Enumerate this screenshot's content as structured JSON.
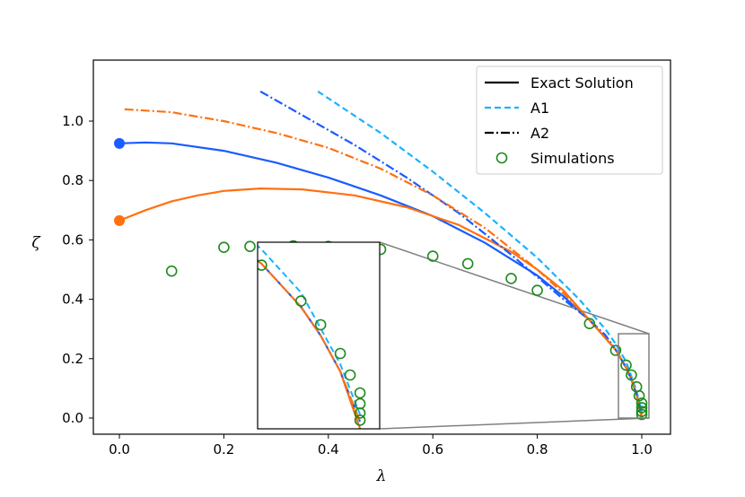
{
  "chart_data": {
    "type": "line",
    "xlabel": "λ",
    "ylabel": "ζ",
    "xlim": [
      -0.05,
      1.05
    ],
    "ylim": [
      -0.05,
      1.1
    ],
    "xticks": [
      "0.0",
      "0.2",
      "0.4",
      "0.6",
      "0.8",
      "1.0"
    ],
    "yticks": [
      "0.0",
      "0.2",
      "0.4",
      "0.6",
      "0.8",
      "1.0"
    ],
    "grid": false,
    "legend": {
      "placement": "top-right",
      "entries": [
        {
          "label": "Exact Solution",
          "style": "solid",
          "color": "#000000"
        },
        {
          "label": "A1",
          "style": "dashed",
          "color": "#1ab2ff"
        },
        {
          "label": "A2",
          "style": "dashdot",
          "color": "#000000"
        },
        {
          "label": "Simulations",
          "style": "marker-circle",
          "color": "#1e8a1e"
        }
      ]
    },
    "series": [
      {
        "style": "solid",
        "color": "#1a5cff",
        "start_marker": true,
        "x": [
          0,
          0.05,
          0.1,
          0.2,
          0.3,
          0.4,
          0.5,
          0.6,
          0.7,
          0.8,
          0.85,
          0.9,
          0.93,
          0.95,
          0.97,
          0.98,
          0.99,
          1.0
        ],
        "y": [
          0.925,
          0.928,
          0.925,
          0.9,
          0.86,
          0.81,
          0.75,
          0.68,
          0.59,
          0.48,
          0.41,
          0.33,
          0.27,
          0.23,
          0.17,
          0.13,
          0.08,
          0.0
        ]
      },
      {
        "style": "solid",
        "color": "#ff7010",
        "start_marker": true,
        "x": [
          0,
          0.05,
          0.1,
          0.15,
          0.2,
          0.27,
          0.35,
          0.45,
          0.55,
          0.65,
          0.75,
          0.8,
          0.85,
          0.9,
          0.93,
          0.95,
          0.97,
          0.98,
          0.99,
          1.0
        ],
        "y": [
          0.665,
          0.7,
          0.73,
          0.75,
          0.765,
          0.773,
          0.77,
          0.75,
          0.71,
          0.65,
          0.56,
          0.5,
          0.43,
          0.33,
          0.27,
          0.23,
          0.17,
          0.13,
          0.08,
          0.0
        ]
      },
      {
        "style": "dashed",
        "color": "#1ab2ff",
        "x": [
          0.38,
          0.5,
          0.6,
          0.7,
          0.8,
          0.88,
          0.93,
          0.95,
          0.97,
          0.98,
          0.99,
          1.0
        ],
        "y": [
          1.1,
          0.96,
          0.83,
          0.69,
          0.54,
          0.4,
          0.3,
          0.25,
          0.19,
          0.14,
          0.09,
          0.02
        ]
      },
      {
        "style": "dashdot",
        "color": "#1a5cff",
        "x": [
          0.27,
          0.35,
          0.45,
          0.55,
          0.65,
          0.75,
          0.85,
          0.9,
          0.93,
          0.95,
          0.97,
          0.98,
          0.99,
          1.0
        ],
        "y": [
          1.1,
          1.02,
          0.92,
          0.81,
          0.69,
          0.55,
          0.4,
          0.33,
          0.28,
          0.23,
          0.17,
          0.13,
          0.08,
          0.01
        ]
      },
      {
        "style": "dashdot",
        "color": "#ff7010",
        "x": [
          0.01,
          0.1,
          0.2,
          0.3,
          0.4,
          0.5,
          0.6,
          0.7,
          0.8,
          0.85,
          0.9,
          0.93,
          0.95,
          0.97,
          0.98,
          0.99,
          1.0
        ],
        "y": [
          1.04,
          1.03,
          1.0,
          0.96,
          0.91,
          0.84,
          0.75,
          0.64,
          0.5,
          0.42,
          0.33,
          0.27,
          0.23,
          0.17,
          0.13,
          0.08,
          0.01
        ]
      }
    ],
    "simulations": {
      "x": [
        0.1,
        0.2,
        0.25,
        0.333,
        0.4,
        0.5,
        0.6,
        0.667,
        0.75,
        0.8,
        0.9,
        0.95,
        0.97,
        0.98,
        0.99,
        0.995,
        1.0,
        1.0,
        1.0,
        1.0
      ],
      "y": [
        0.495,
        0.575,
        0.578,
        0.58,
        0.578,
        0.568,
        0.545,
        0.52,
        0.47,
        0.43,
        0.318,
        0.228,
        0.178,
        0.145,
        0.105,
        0.075,
        0.05,
        0.035,
        0.022,
        0.012
      ]
    },
    "inset": {
      "xlim": [
        0.948,
        1.01
      ],
      "ylim": [
        0.0,
        0.26
      ]
    }
  }
}
